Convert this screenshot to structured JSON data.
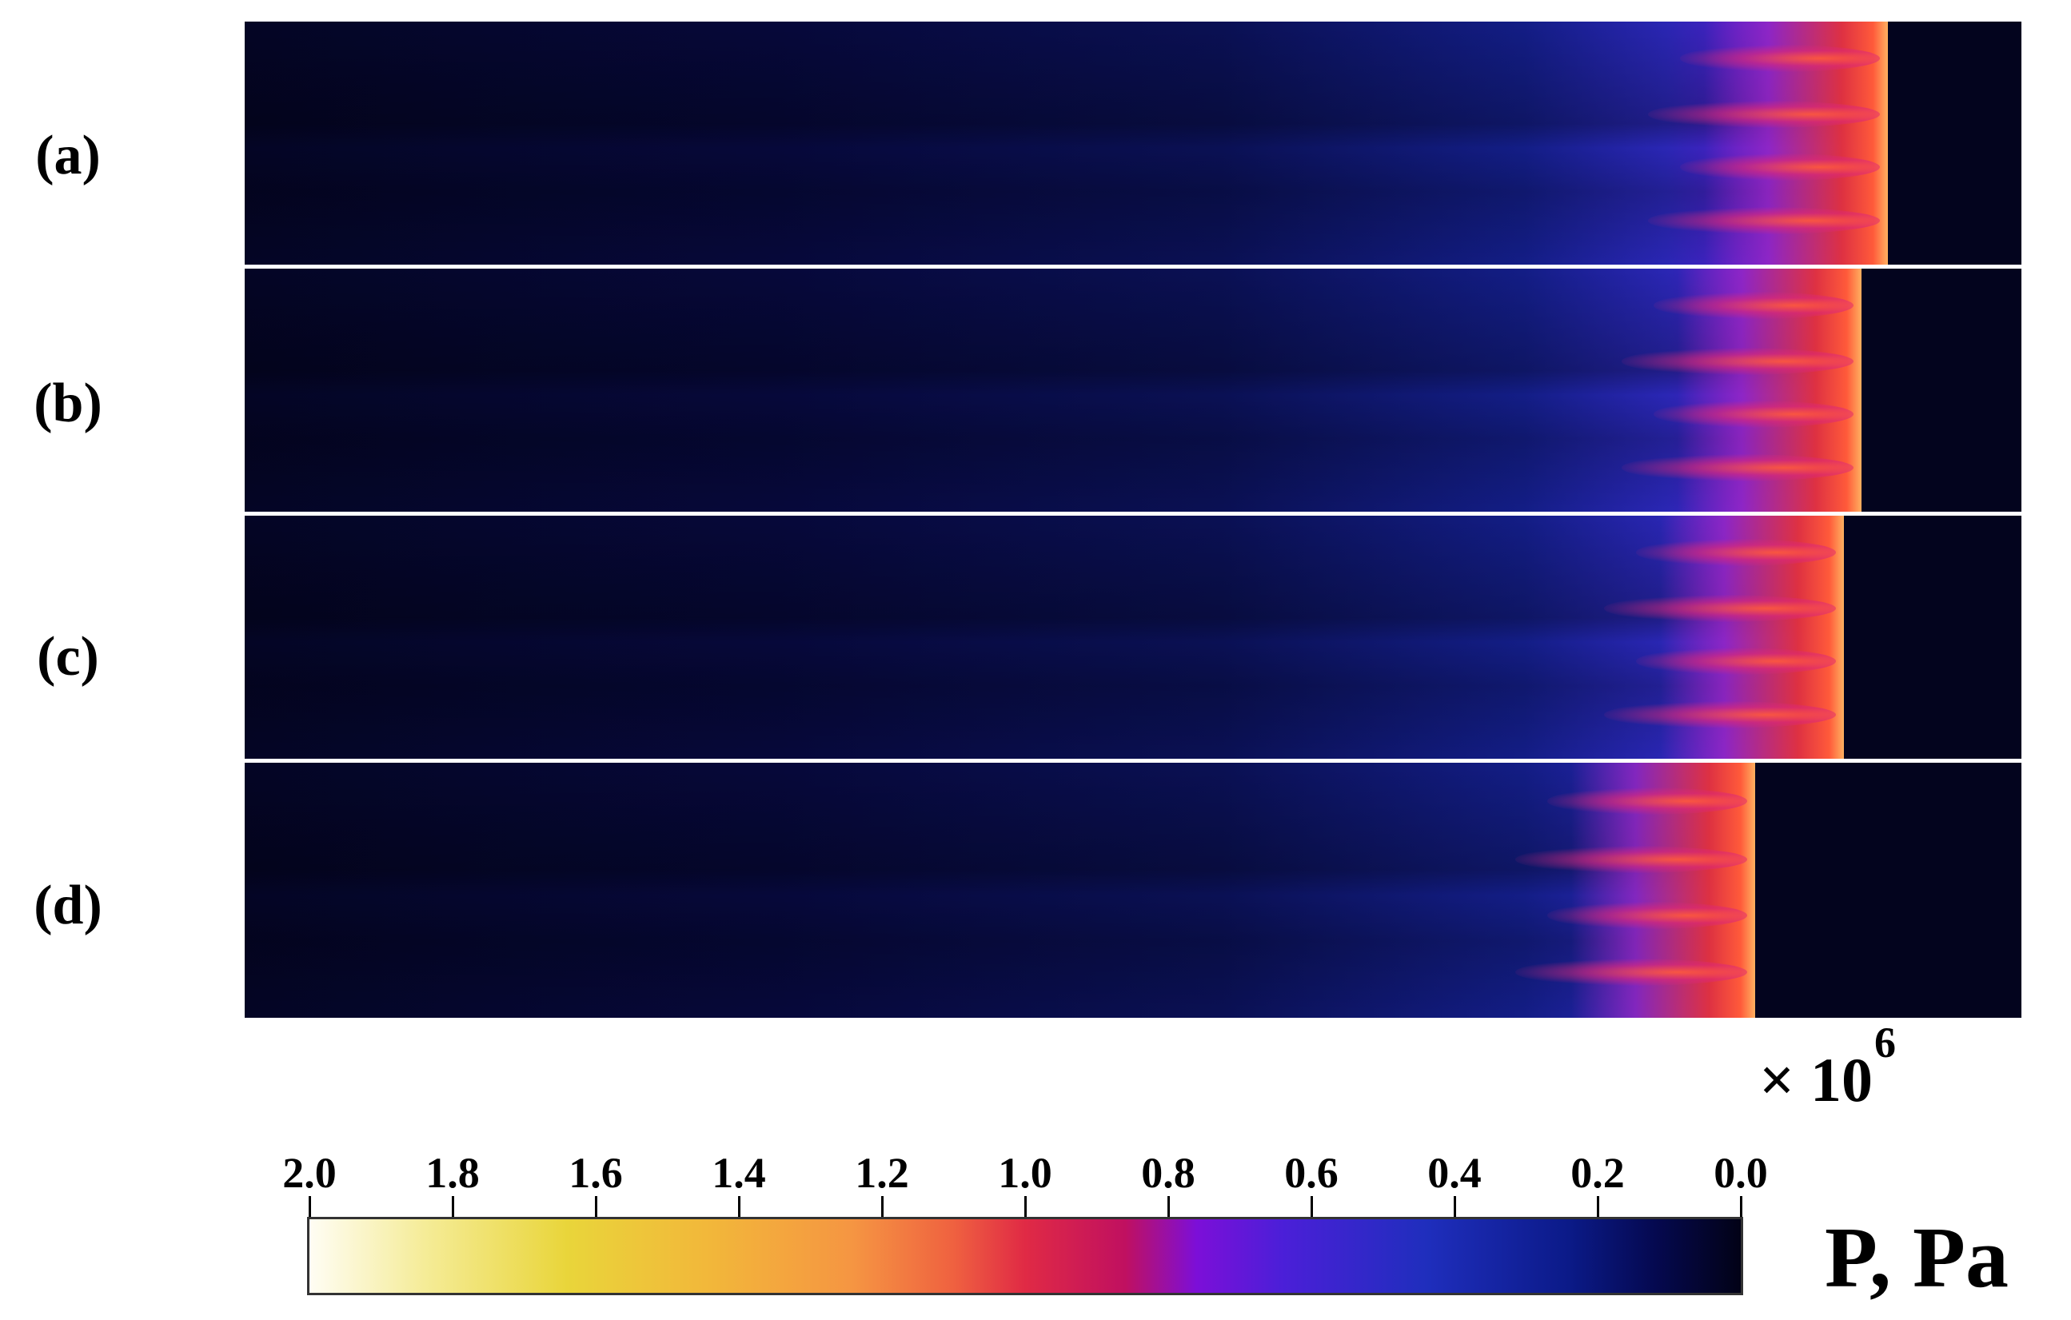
{
  "panels": [
    {
      "label": "(a)",
      "front": 0.925
    },
    {
      "label": "(b)",
      "front": 0.91
    },
    {
      "label": "(c)",
      "front": 0.9
    },
    {
      "label": "(d)",
      "front": 0.85
    }
  ],
  "colorbar": {
    "ticks": [
      "2.0",
      "1.8",
      "1.6",
      "1.4",
      "1.2",
      "1.0",
      "0.8",
      "0.6",
      "0.4",
      "0.2",
      "0.0"
    ],
    "multiplier_base": "× 10",
    "multiplier_exponent": "6",
    "unit_label": "P, Pa",
    "range": [
      0.0,
      2.0
    ]
  },
  "colors": {
    "background": "#03041e",
    "separator": "#ffffff",
    "high": "#fffdf4",
    "mid": "#e02a45",
    "low": "#020216"
  }
}
